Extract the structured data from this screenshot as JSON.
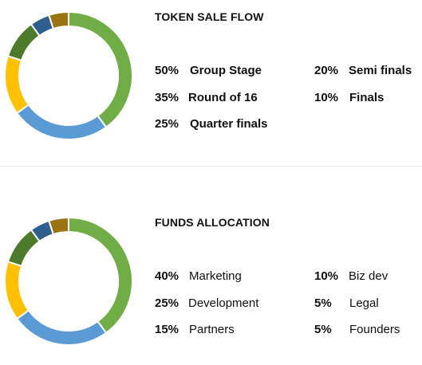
{
  "colors": {
    "green": "#70ad47",
    "blue": "#5b9bd5",
    "yellow": "#ffc000",
    "dark_green": "#4e7a2c",
    "dark_blue": "#2f5f8f",
    "olive": "#9a7410"
  },
  "chart_data": [
    {
      "type": "pie",
      "donut": true,
      "title": "TOKEN SALE FLOW",
      "slices": [
        {
          "name": "Group Stage",
          "pct_label": "50%",
          "ring_value": 40,
          "color": "#70ad47"
        },
        {
          "name": "Round of 16",
          "pct_label": "35%",
          "ring_value": 25,
          "color": "#5b9bd5"
        },
        {
          "name": "Quarter finals",
          "pct_label": "25%",
          "ring_value": 15,
          "color": "#ffc000"
        },
        {
          "name": "Semi finals",
          "pct_label": "20%",
          "ring_value": 10,
          "color": "#4e7a2c"
        },
        {
          "name": "Finals",
          "pct_label": "10%",
          "ring_value": 5,
          "color": "#2f5f8f"
        },
        {
          "name": "",
          "pct_label": "",
          "ring_value": 5,
          "color": "#9a7410"
        }
      ],
      "legend_columns": [
        [
          "Group Stage",
          "Round of 16",
          "Quarter finals"
        ],
        [
          "Semi finals",
          "Finals"
        ]
      ]
    },
    {
      "type": "pie",
      "donut": true,
      "title": "FUNDS ALLOCATION",
      "slices": [
        {
          "name": "Marketing",
          "pct_label": "40%",
          "ring_value": 40,
          "color": "#70ad47"
        },
        {
          "name": "Development",
          "pct_label": "25%",
          "ring_value": 25,
          "color": "#5b9bd5"
        },
        {
          "name": "Partners",
          "pct_label": "15%",
          "ring_value": 15,
          "color": "#ffc000"
        },
        {
          "name": "Biz dev",
          "pct_label": "10%",
          "ring_value": 10,
          "color": "#4e7a2c"
        },
        {
          "name": "Legal",
          "pct_label": "5%",
          "ring_value": 5,
          "color": "#2f5f8f"
        },
        {
          "name": "Founders",
          "pct_label": "5%",
          "ring_value": 5,
          "color": "#9a7410"
        }
      ],
      "legend_columns": [
        [
          "Marketing",
          "Development",
          "Partners"
        ],
        [
          "Biz dev",
          "Legal",
          "Founders"
        ]
      ]
    }
  ]
}
